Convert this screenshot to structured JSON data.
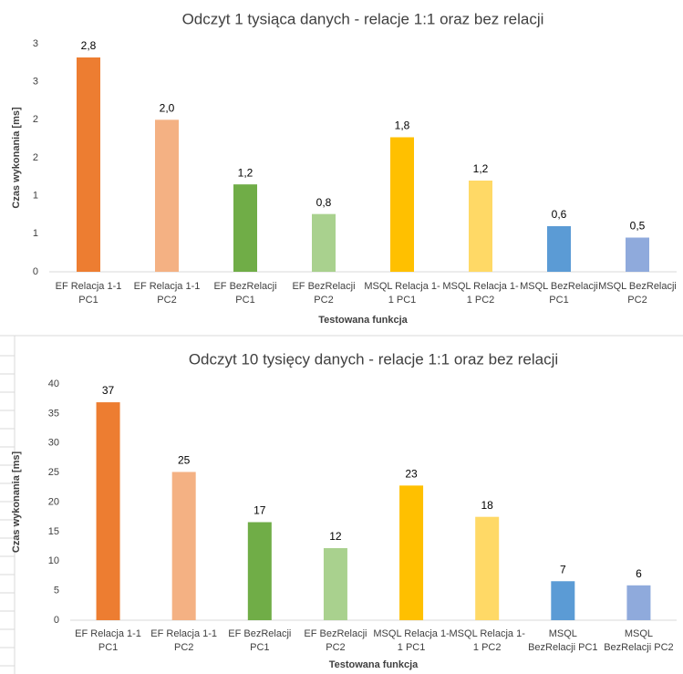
{
  "chart_data": [
    {
      "type": "bar",
      "title": "Odczyt 1 tysiąca danych - relacje 1:1 oraz bez relacji",
      "x_label": "Testowana funkcja",
      "y_label": "Czas wykonania [ms]",
      "categories": [
        [
          "EF Relacja 1-1",
          "PC1"
        ],
        [
          "EF Relacja 1-1",
          "PC2"
        ],
        [
          "EF BezRelacji",
          "PC1"
        ],
        [
          "EF BezRelacji",
          "PC2"
        ],
        [
          "MSQL Relacja 1-",
          "1 PC1"
        ],
        [
          "MSQL Relacja 1-",
          "1 PC2"
        ],
        [
          "MSQL BezRelacji",
          "PC1"
        ],
        [
          "MSQL BezRelacji",
          "PC2"
        ]
      ],
      "values": [
        2.82,
        2.0,
        1.15,
        0.76,
        1.77,
        1.2,
        0.6,
        0.45
      ],
      "value_labels": [
        "2,8",
        "2,0",
        "1,2",
        "0,8",
        "1,8",
        "1,2",
        "0,6",
        "0,5"
      ],
      "colors": [
        "#ed7d31",
        "#f4b183",
        "#70ad47",
        "#a9d18e",
        "#ffc000",
        "#ffd966",
        "#5b9bd5",
        "#8faadc"
      ],
      "ylim": [
        0,
        3
      ],
      "yticks": [
        0,
        {
          "value": 0.5,
          "label": "1"
        },
        1,
        {
          "value": 1.5,
          "label": "2"
        },
        2,
        {
          "value": 2.5,
          "label": "3"
        },
        3
      ],
      "grid": false
    },
    {
      "type": "bar",
      "title": "Odczyt 10 tysięcy danych - relacje 1:1 oraz bez relacji",
      "x_label": "Testowana funkcja",
      "y_label": "Czas wykonania [ms]",
      "categories": [
        [
          "EF Relacja 1-1",
          "PC1"
        ],
        [
          "EF Relacja 1-1",
          "PC2"
        ],
        [
          "EF BezRelacji",
          "PC1"
        ],
        [
          "EF BezRelacji",
          "PC2"
        ],
        [
          "MSQL Relacja 1-",
          "1 PC1"
        ],
        [
          "MSQL Relacja 1-",
          "1 PC2"
        ],
        [
          "MSQL",
          "BezRelacji PC1"
        ],
        [
          "MSQL",
          "BezRelacji PC2"
        ]
      ],
      "values": [
        36.9,
        25.1,
        16.6,
        12.2,
        22.8,
        17.5,
        6.6,
        5.9
      ],
      "value_labels": [
        "37",
        "25",
        "17",
        "12",
        "23",
        "18",
        "7",
        "6"
      ],
      "colors": [
        "#ed7d31",
        "#f4b183",
        "#70ad47",
        "#a9d18e",
        "#ffc000",
        "#ffd966",
        "#5b9bd5",
        "#8faadc"
      ],
      "ylim": [
        0,
        40
      ],
      "yticks": [
        0,
        5,
        10,
        15,
        20,
        25,
        30,
        35,
        40
      ],
      "grid": false
    }
  ]
}
